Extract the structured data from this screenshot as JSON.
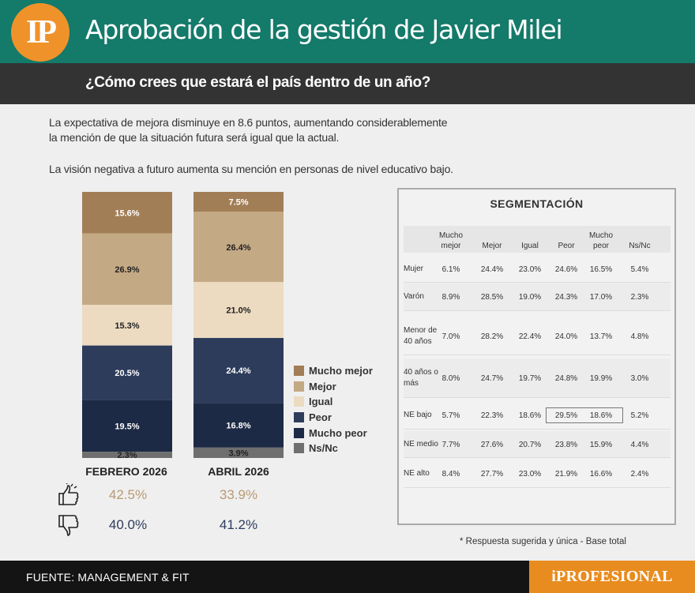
{
  "header": {
    "logo": "IP",
    "title": "Aprobación de la gestión de Javier Milei",
    "subtitle": "¿Cómo crees que estará el país dentro de un año?"
  },
  "description": {
    "line1": "La expectativa de mejora disminuye en 8.6 puntos, aumentando considerablemente",
    "line2": "la mención de que la situación futura será igual que la actual.",
    "line3": "La visión negativa a futuro aumenta su mención en personas de nivel educativo bajo."
  },
  "chart_data": {
    "type": "bar",
    "stacked": true,
    "categories": [
      "FEBRERO 2026",
      "ABRIL 2026"
    ],
    "series": [
      {
        "name": "Mucho mejor",
        "values": [
          15.6,
          7.5
        ],
        "labels": [
          "15.6%",
          "7.5%"
        ],
        "color": "#a27e56",
        "text_color": "#ffffff"
      },
      {
        "name": "Mejor",
        "values": [
          26.9,
          26.4
        ],
        "labels": [
          "26.9%",
          "26.4%"
        ],
        "color": "#c4a985",
        "text_color": "#222222"
      },
      {
        "name": "Igual",
        "values": [
          15.3,
          21.0
        ],
        "labels": [
          "15.3%",
          "21.0%"
        ],
        "color": "#ecdbc1",
        "text_color": "#222222"
      },
      {
        "name": "Peor",
        "values": [
          20.5,
          24.4
        ],
        "labels": [
          "20.5%",
          "24.4%"
        ],
        "color": "#2e3c5c",
        "text_color": "#ffffff"
      },
      {
        "name": "Mucho peor",
        "values": [
          19.5,
          16.8
        ],
        "labels": [
          "19.5%",
          "16.8%"
        ],
        "color": "#1d2a45",
        "text_color": "#ffffff"
      },
      {
        "name": "Ns/Nc",
        "values": [
          2.3,
          3.9
        ],
        "labels": [
          "2.3%",
          "3.9%"
        ],
        "color": "#6f6f6f",
        "text_color": "#222222"
      }
    ],
    "legend_position": "right"
  },
  "summary": {
    "positive": [
      "42.5%",
      "33.9%"
    ],
    "negative": [
      "40.0%",
      "41.2%"
    ],
    "positive_color": "#b89a74",
    "negative_color": "#2e3c5c"
  },
  "segmentation": {
    "title": "SEGMENTACIÓN",
    "headers": [
      "Mucho mejor",
      "Mejor",
      "Igual",
      "Peor",
      "Mucho peor",
      "Ns/Nc"
    ],
    "rows": [
      {
        "label": "Mujer",
        "values": [
          "6.1%",
          "24.4%",
          "23.0%",
          "24.6%",
          "16.5%",
          "5.4%"
        ]
      },
      {
        "label": "Varón",
        "values": [
          "8.9%",
          "28.5%",
          "19.0%",
          "24.3%",
          "17.0%",
          "2.3%"
        ]
      },
      {
        "label": "Menor de 40 años",
        "values": [
          "7.0%",
          "28.2%",
          "22.4%",
          "24.0%",
          "13.7%",
          "4.8%"
        ]
      },
      {
        "label": "40 años o más",
        "values": [
          "8.0%",
          "24.7%",
          "19.7%",
          "24.8%",
          "19.9%",
          "3.0%"
        ]
      },
      {
        "label": "NE bajo",
        "values": [
          "5.7%",
          "22.3%",
          "18.6%",
          "29.5%",
          "18.6%",
          "5.2%"
        ]
      },
      {
        "label": "NE medio",
        "values": [
          "7.7%",
          "27.6%",
          "20.7%",
          "23.8%",
          "15.9%",
          "4.4%"
        ]
      },
      {
        "label": "NE alto",
        "values": [
          "8.4%",
          "27.7%",
          "23.0%",
          "21.9%",
          "16.6%",
          "2.4%"
        ]
      }
    ]
  },
  "note": "* Respuesta sugerida y única - Base total",
  "footer": {
    "source": "FUENTE: MANAGEMENT & FIT",
    "brand": "iPROFESIONAL"
  }
}
